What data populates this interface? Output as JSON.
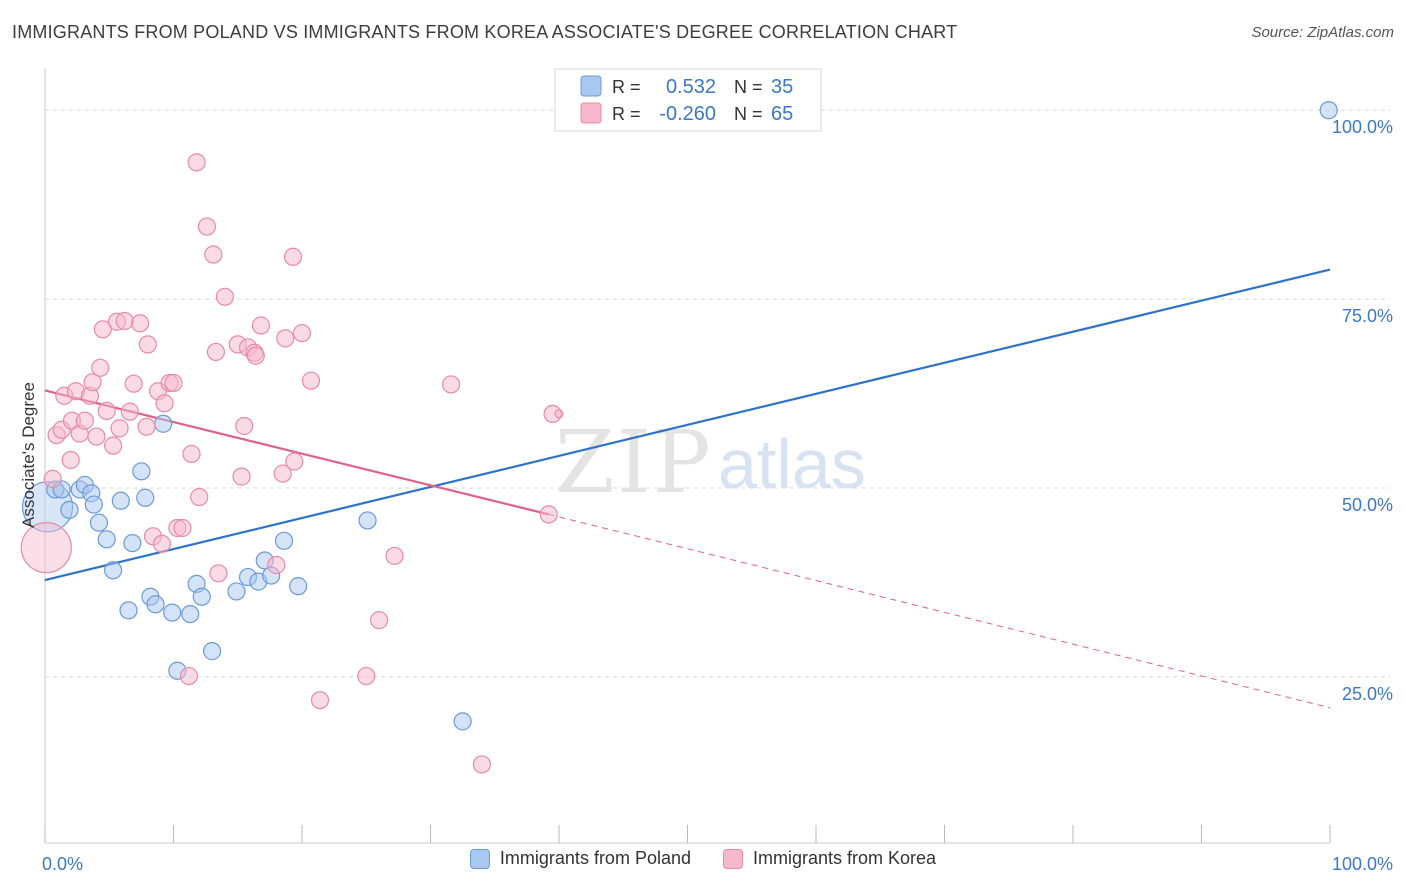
{
  "title": "IMMIGRANTS FROM POLAND VS IMMIGRANTS FROM KOREA ASSOCIATE'S DEGREE CORRELATION CHART",
  "source": "Source: ZipAtlas.com",
  "watermark": {
    "part1": "ZIP",
    "part2": "atlas"
  },
  "colors": {
    "poland_fill": "#a9c8f0",
    "poland_stroke": "#6a9bd8",
    "poland_line": "#2d73c9",
    "korea_fill": "#f6b8cb",
    "korea_stroke": "#e98aa8",
    "korea_line": "#e0608a",
    "axis_text": "#3c78c8",
    "grid": "#d6d6d6"
  },
  "stats_box": {
    "rows": [
      {
        "r_label": "R =",
        "r_value": "0.532",
        "n_label": "N =",
        "n_value": "35"
      },
      {
        "r_label": "R =",
        "r_value": "-0.260",
        "n_label": "N =",
        "n_value": "65"
      }
    ]
  },
  "legend": {
    "poland": "Immigrants from Poland",
    "korea": "Immigrants from Korea"
  },
  "chart_data": {
    "type": "scatter",
    "xlabel": "",
    "ylabel": "Associate's Degree",
    "xlim": [
      0,
      100
    ],
    "ylim": [
      3,
      104
    ],
    "x_tick_labels": [
      {
        "value": 0,
        "label": "0.0%"
      },
      {
        "value": 100,
        "label": "100.0%"
      }
    ],
    "y_tick_labels": [
      {
        "value": 100,
        "label": "100.0%"
      },
      {
        "value": 75,
        "label": "75.0%"
      },
      {
        "value": 50,
        "label": "50.0%"
      },
      {
        "value": 25,
        "label": "25.0%"
      }
    ],
    "series": [
      {
        "name": "Immigrants from Poland",
        "r": 0.532,
        "n": 35,
        "trend": {
          "x0": 0,
          "y0": 37.8,
          "x1": 100,
          "y1": 78.9
        },
        "points": [
          [
            0.2,
            47.5,
            3
          ],
          [
            0.8,
            49.8,
            1
          ],
          [
            1.3,
            49.8,
            1
          ],
          [
            1.9,
            47.1,
            1
          ],
          [
            2.7,
            49.8,
            1
          ],
          [
            3.1,
            50.4,
            1
          ],
          [
            3.6,
            49.3,
            1
          ],
          [
            3.8,
            47.8,
            1
          ],
          [
            4.2,
            45.4,
            1
          ],
          [
            4.8,
            43.2,
            1
          ],
          [
            5.3,
            39.1,
            1
          ],
          [
            5.9,
            48.3,
            1
          ],
          [
            6.5,
            33.8,
            1
          ],
          [
            6.8,
            42.7,
            1
          ],
          [
            7.5,
            52.2,
            1
          ],
          [
            7.8,
            48.7,
            1
          ],
          [
            8.2,
            35.6,
            1
          ],
          [
            8.6,
            34.6,
            1
          ],
          [
            9.2,
            58.5,
            1
          ],
          [
            9.9,
            33.5,
            1
          ],
          [
            10.3,
            25.8,
            1
          ],
          [
            11.3,
            33.3,
            1
          ],
          [
            11.8,
            37.3,
            1
          ],
          [
            12.2,
            35.6,
            1
          ],
          [
            13.0,
            28.4,
            1
          ],
          [
            14.9,
            36.3,
            1
          ],
          [
            15.8,
            38.2,
            1
          ],
          [
            16.6,
            37.6,
            1
          ],
          [
            17.1,
            40.4,
            1
          ],
          [
            17.6,
            38.4,
            1
          ],
          [
            18.6,
            43.0,
            1
          ],
          [
            19.7,
            37.0,
            1
          ],
          [
            25.1,
            45.7,
            1
          ],
          [
            32.5,
            19.1,
            1
          ],
          [
            99.9,
            100.0,
            1
          ]
        ]
      },
      {
        "name": "Immigrants from Korea",
        "r": -0.26,
        "n": 65,
        "trend": {
          "x0": 0,
          "y0": 62.9,
          "x1": 39.2,
          "y1": 46.5,
          "dash_x1": 100,
          "dash_y1": 20.9
        },
        "points": [
          [
            0.1,
            42.1,
            3
          ],
          [
            0.6,
            51.2,
            1
          ],
          [
            0.9,
            57.0,
            1
          ],
          [
            1.3,
            57.7,
            1
          ],
          [
            1.5,
            62.2,
            1
          ],
          [
            2.0,
            53.7,
            1
          ],
          [
            2.1,
            58.9,
            1
          ],
          [
            2.4,
            62.8,
            1
          ],
          [
            2.7,
            57.2,
            1
          ],
          [
            3.1,
            58.9,
            1
          ],
          [
            3.5,
            62.2,
            1
          ],
          [
            3.7,
            64.0,
            1
          ],
          [
            4.0,
            56.8,
            1
          ],
          [
            4.3,
            65.9,
            1
          ],
          [
            4.5,
            71.0,
            1
          ],
          [
            4.8,
            60.2,
            1
          ],
          [
            5.3,
            55.6,
            1
          ],
          [
            5.6,
            72.0,
            1
          ],
          [
            5.8,
            57.9,
            1
          ],
          [
            6.2,
            72.1,
            1
          ],
          [
            6.6,
            60.1,
            1
          ],
          [
            6.9,
            63.8,
            1
          ],
          [
            7.4,
            71.8,
            1
          ],
          [
            7.9,
            58.1,
            1
          ],
          [
            8.0,
            69.0,
            1
          ],
          [
            8.4,
            43.6,
            1
          ],
          [
            8.8,
            62.8,
            1
          ],
          [
            9.1,
            42.6,
            1
          ],
          [
            9.3,
            61.2,
            1
          ],
          [
            9.7,
            63.9,
            1
          ],
          [
            10.0,
            63.9,
            1
          ],
          [
            10.3,
            44.7,
            1
          ],
          [
            10.7,
            44.7,
            1
          ],
          [
            11.2,
            25.1,
            1
          ],
          [
            11.4,
            54.5,
            1
          ],
          [
            11.8,
            93.1,
            1
          ],
          [
            12.0,
            48.8,
            1
          ],
          [
            12.6,
            84.6,
            1
          ],
          [
            13.1,
            80.9,
            1
          ],
          [
            13.3,
            68.0,
            1
          ],
          [
            13.5,
            38.7,
            1
          ],
          [
            14.0,
            75.3,
            1
          ],
          [
            15.0,
            69.0,
            1
          ],
          [
            15.3,
            51.5,
            1
          ],
          [
            15.5,
            58.2,
            1
          ],
          [
            15.8,
            68.6,
            1
          ],
          [
            16.3,
            67.9,
            1
          ],
          [
            16.4,
            67.5,
            1
          ],
          [
            16.8,
            71.5,
            1
          ],
          [
            18.0,
            39.8,
            1
          ],
          [
            18.5,
            51.9,
            1
          ],
          [
            18.7,
            69.8,
            1
          ],
          [
            19.3,
            80.6,
            1
          ],
          [
            19.4,
            53.5,
            1
          ],
          [
            20.0,
            70.5,
            1
          ],
          [
            20.7,
            64.2,
            1
          ],
          [
            21.4,
            21.9,
            1
          ],
          [
            25.0,
            25.1,
            1
          ],
          [
            26.0,
            32.5,
            1
          ],
          [
            27.2,
            41.0,
            1
          ],
          [
            31.6,
            63.7,
            1
          ],
          [
            34.0,
            13.4,
            1
          ],
          [
            39.2,
            46.5,
            1
          ],
          [
            39.5,
            59.8,
            1
          ],
          [
            40.0,
            59.8,
            0
          ]
        ]
      }
    ]
  }
}
